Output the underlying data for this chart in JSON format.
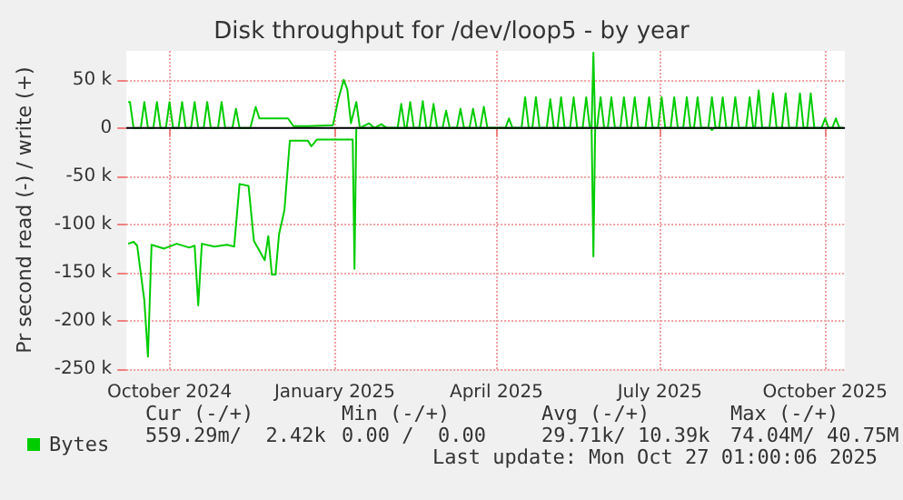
{
  "chart_data": {
    "type": "line",
    "title": "Disk throughput for /dev/loop5 - by year",
    "ylabel": "Pr second read (-) / write (+)",
    "xlim": [
      "2024-09-21",
      "2025-10-26"
    ],
    "xticks": [
      {
        "value": "2024-10-15",
        "label": "October 2024"
      },
      {
        "value": "2025-01-15",
        "label": "January 2025"
      },
      {
        "value": "2025-04-15",
        "label": "April 2025"
      },
      {
        "value": "2025-07-15",
        "label": "July 2025"
      },
      {
        "value": "2025-10-15",
        "label": "October 2025"
      }
    ],
    "ylim": [
      -250,
      80
    ],
    "yticks": [
      {
        "value": -250,
        "label": "-250 k"
      },
      {
        "value": -200,
        "label": "-200 k"
      },
      {
        "value": -150,
        "label": "-150 k"
      },
      {
        "value": -100,
        "label": "-100 k"
      },
      {
        "value": -50,
        "label": "-50 k"
      },
      0,
      {
        "value": 50,
        "label": "50 k"
      }
    ],
    "grid": true,
    "legend": "bottom left",
    "marker": "none",
    "line_style": "solid",
    "series": [
      {
        "name": "Bytes",
        "color": "#00cc00",
        "x": [
          "2024-09-22",
          "2024-09-23",
          "2024-09-25",
          "2024-09-29",
          "2024-10-01",
          "2024-10-03",
          "2024-10-06",
          "2024-10-08",
          "2024-10-10",
          "2024-10-13",
          "2024-10-15",
          "2024-10-17",
          "2024-10-20",
          "2024-10-22",
          "2024-10-24",
          "2024-10-27",
          "2024-10-29",
          "2024-10-31",
          "2024-11-03",
          "2024-11-05",
          "2024-11-07",
          "2024-11-11",
          "2024-11-13",
          "2024-11-15",
          "2024-11-19",
          "2024-11-21",
          "2024-11-23",
          "2024-11-29",
          "2024-12-02",
          "2024-12-04",
          "2024-12-20",
          "2024-12-23",
          "2024-12-31",
          "2025-01-14",
          "2025-01-17",
          "2025-01-20",
          "2025-01-22",
          "2025-01-24",
          "2025-01-27",
          "2025-01-29",
          "2025-02-03",
          "2025-02-06",
          "2025-02-10",
          "2025-02-13",
          "2025-02-19",
          "2025-02-21",
          "2025-02-23",
          "2025-02-24",
          "2025-02-26",
          "2025-02-28",
          "2025-03-03",
          "2025-03-05",
          "2025-03-07",
          "2025-03-09",
          "2025-03-11",
          "2025-03-13",
          "2025-03-16",
          "2025-03-18",
          "2025-03-20",
          "2025-03-24",
          "2025-03-26",
          "2025-03-28",
          "2025-03-31",
          "2025-04-02",
          "2025-04-04",
          "2025-04-06",
          "2025-04-08",
          "2025-04-10",
          "2025-04-20",
          "2025-04-22",
          "2025-04-24",
          "2025-04-29",
          "2025-05-01",
          "2025-05-03",
          "2025-05-05",
          "2025-05-07",
          "2025-05-09",
          "2025-05-13",
          "2025-05-15",
          "2025-05-17",
          "2025-05-19",
          "2025-05-21",
          "2025-05-23",
          "2025-05-26",
          "2025-05-28",
          "2025-05-30",
          "2025-06-02",
          "2025-06-04",
          "2025-06-06",
          "2025-06-07",
          "2025-06-08",
          "2025-06-09",
          "2025-06-10",
          "2025-06-12",
          "2025-06-14",
          "2025-06-16",
          "2025-06-18",
          "2025-06-20",
          "2025-06-23",
          "2025-06-25",
          "2025-06-27",
          "2025-06-29",
          "2025-07-01",
          "2025-07-03",
          "2025-07-07",
          "2025-07-09",
          "2025-07-11",
          "2025-07-14",
          "2025-07-16",
          "2025-07-18",
          "2025-07-21",
          "2025-07-23",
          "2025-07-25",
          "2025-07-28",
          "2025-07-30",
          "2025-08-01",
          "2025-08-03",
          "2025-08-05",
          "2025-08-07",
          "2025-08-11",
          "2025-08-13",
          "2025-08-15",
          "2025-08-17",
          "2025-08-19",
          "2025-08-21",
          "2025-08-24",
          "2025-08-26",
          "2025-08-28",
          "2025-09-01",
          "2025-09-03",
          "2025-09-05",
          "2025-09-06",
          "2025-09-08",
          "2025-09-10",
          "2025-09-14",
          "2025-09-16",
          "2025-09-18",
          "2025-09-21",
          "2025-09-23",
          "2025-09-25",
          "2025-09-29",
          "2025-10-01",
          "2025-10-03",
          "2025-10-05",
          "2025-10-07",
          "2025-10-09",
          "2025-10-13",
          "2025-10-15",
          "2025-10-17",
          "2025-10-19",
          "2025-10-21",
          "2025-10-23",
          "2025-10-25"
        ],
        "values": [
          27,
          27,
          0,
          0,
          27,
          0,
          0,
          27,
          0,
          0,
          27,
          0,
          0,
          27,
          0,
          0,
          27,
          0,
          0,
          27,
          0,
          0,
          27,
          0,
          0,
          20,
          0,
          0,
          22,
          10,
          10,
          2,
          2,
          3,
          30,
          50,
          40,
          5,
          27,
          0,
          5,
          0,
          4,
          0,
          0,
          25,
          0,
          0,
          27,
          0,
          0,
          28,
          0,
          0,
          25,
          0,
          0,
          18,
          0,
          0,
          20,
          0,
          0,
          20,
          0,
          0,
          22,
          0,
          0,
          10,
          0,
          0,
          32,
          0,
          0,
          32,
          0,
          0,
          30,
          0,
          0,
          32,
          0,
          0,
          32,
          0,
          0,
          32,
          0,
          0,
          78,
          0,
          0,
          32,
          0,
          0,
          32,
          0,
          0,
          32,
          0,
          0,
          32,
          0,
          0,
          32,
          0,
          0,
          32,
          0,
          0,
          32,
          0,
          0,
          32,
          0,
          0,
          32,
          0,
          0,
          32,
          0,
          0,
          32,
          0,
          0,
          32,
          0,
          0,
          32,
          0,
          0,
          39,
          0,
          0,
          36,
          0,
          0,
          36,
          0,
          0,
          36,
          0,
          0,
          36,
          0,
          0,
          10,
          0,
          0,
          10,
          0,
          0
        ]
      },
      {
        "color": "#00cc00",
        "x": [
          "2024-09-22",
          "2024-09-25",
          "2024-09-27",
          "2024-10-01",
          "2024-10-03",
          "2024-10-05",
          "2024-10-12",
          "2024-10-19",
          "2024-10-26",
          "2024-10-29",
          "2024-10-31",
          "2024-11-02",
          "2024-11-09",
          "2024-11-16",
          "2024-11-20",
          "2024-11-23",
          "2024-11-28",
          "2024-12-01",
          "2024-12-04",
          "2024-12-07",
          "2024-12-09",
          "2024-12-11",
          "2024-12-13",
          "2024-12-15",
          "2024-12-18",
          "2024-12-21",
          "2024-12-31",
          "2025-01-02",
          "2025-01-05",
          "2025-01-25",
          "2025-01-26",
          "2025-01-27",
          "2025-06-07",
          "2025-06-08",
          "2025-06-09",
          "2025-08-12",
          "2025-08-13",
          "2025-08-14",
          "2025-10-25"
        ],
        "values": [
          -120,
          -118,
          -122,
          -179,
          -237,
          -121,
          -125,
          -120,
          -124,
          -122,
          -184,
          -120,
          -123,
          -121,
          -123,
          -58,
          -60,
          -117,
          -127,
          -137,
          -112,
          -152,
          -152,
          -110,
          -85,
          -13,
          -13,
          -19,
          -12,
          -12,
          -146,
          0,
          0,
          -133,
          0,
          0,
          -2,
          0,
          0
        ]
      }
    ],
    "annotations": [
      "Cur (-/+)",
      "Min (-/+)",
      "Avg (-/+)",
      "Max (-/+)",
      "559.29m/  2.42k",
      "0.00 /  0.00",
      "29.71k/ 10.39k",
      "74.04M/ 40.75M",
      "Last update: Mon Oct 27 01:00:06 2025"
    ]
  }
}
